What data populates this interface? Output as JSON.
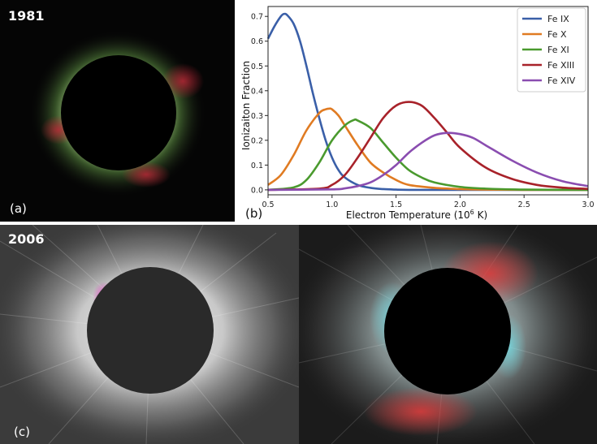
{
  "panel_a": {
    "year": "1981",
    "label": "(a)"
  },
  "panel_b": {
    "label": "(b)"
  },
  "panel_c": {
    "year": "2006",
    "label": "(c)"
  },
  "colors": {
    "fe_ix": "#3a5fa8",
    "fe_x": "#e07b22",
    "fe_xi": "#4a9a2e",
    "fe_xiii": "#a8222a",
    "fe_xiv": "#8a4db0"
  },
  "chart_data": {
    "type": "line",
    "title": "",
    "xlabel_main": "Electron Temperature (10",
    "xlabel_sup": "6",
    "xlabel_end": " K)",
    "ylabel": "Ionizaiton Fraction",
    "xlim": [
      0.5,
      3.0
    ],
    "ylim": [
      -0.02,
      0.74
    ],
    "xticks": [
      "0.5",
      "1.0",
      "1.5",
      "2.0",
      "2.5",
      "3.0"
    ],
    "yticks": [
      "0.0",
      "0.1",
      "0.2",
      "0.3",
      "0.4",
      "0.5",
      "0.6",
      "0.7"
    ],
    "grid": false,
    "legend_position": "top-right",
    "series": [
      {
        "name": "Fe IX",
        "color": "#3a5fa8",
        "x": [
          0.5,
          0.55,
          0.6,
          0.625,
          0.65,
          0.7,
          0.75,
          0.8,
          0.85,
          0.9,
          0.95,
          1.0,
          1.05,
          1.1,
          1.2,
          1.3,
          1.4,
          1.5,
          1.6,
          1.8,
          2.0,
          2.5,
          3.0
        ],
        "y": [
          0.61,
          0.66,
          0.7,
          0.71,
          0.705,
          0.67,
          0.6,
          0.5,
          0.39,
          0.29,
          0.2,
          0.13,
          0.08,
          0.05,
          0.02,
          0.008,
          0.003,
          0.001,
          0.0,
          0.0,
          0.0,
          0.0,
          0.0
        ]
      },
      {
        "name": "Fe X",
        "color": "#e07b22",
        "x": [
          0.5,
          0.6,
          0.7,
          0.8,
          0.9,
          0.95,
          0.98,
          1.0,
          1.05,
          1.1,
          1.2,
          1.3,
          1.4,
          1.5,
          1.6,
          1.8,
          2.0,
          2.2,
          2.5,
          3.0
        ],
        "y": [
          0.02,
          0.06,
          0.14,
          0.24,
          0.31,
          0.325,
          0.328,
          0.325,
          0.3,
          0.26,
          0.18,
          0.11,
          0.07,
          0.04,
          0.02,
          0.008,
          0.003,
          0.001,
          0.0,
          0.0
        ]
      },
      {
        "name": "Fe XI",
        "color": "#4a9a2e",
        "x": [
          0.5,
          0.7,
          0.8,
          0.9,
          1.0,
          1.1,
          1.17,
          1.2,
          1.3,
          1.4,
          1.5,
          1.6,
          1.7,
          1.8,
          2.0,
          2.2,
          2.5,
          3.0
        ],
        "y": [
          0.0,
          0.01,
          0.04,
          0.11,
          0.2,
          0.26,
          0.282,
          0.28,
          0.25,
          0.19,
          0.13,
          0.08,
          0.05,
          0.03,
          0.012,
          0.005,
          0.001,
          0.0
        ]
      },
      {
        "name": "Fe XIII",
        "color": "#a8222a",
        "x": [
          0.5,
          0.9,
          1.0,
          1.1,
          1.2,
          1.3,
          1.4,
          1.5,
          1.6,
          1.7,
          1.8,
          1.9,
          2.0,
          2.2,
          2.4,
          2.6,
          2.8,
          3.0
        ],
        "y": [
          0.0,
          0.005,
          0.02,
          0.06,
          0.13,
          0.21,
          0.29,
          0.34,
          0.355,
          0.34,
          0.29,
          0.23,
          0.17,
          0.09,
          0.045,
          0.02,
          0.009,
          0.004
        ]
      },
      {
        "name": "Fe XIV",
        "color": "#8a4db0",
        "x": [
          0.5,
          1.0,
          1.1,
          1.2,
          1.3,
          1.4,
          1.5,
          1.6,
          1.7,
          1.8,
          1.9,
          2.0,
          2.1,
          2.2,
          2.4,
          2.6,
          2.8,
          3.0
        ],
        "y": [
          0.0,
          0.002,
          0.006,
          0.015,
          0.03,
          0.06,
          0.1,
          0.15,
          0.19,
          0.22,
          0.23,
          0.225,
          0.21,
          0.18,
          0.12,
          0.07,
          0.035,
          0.015
        ]
      }
    ]
  }
}
